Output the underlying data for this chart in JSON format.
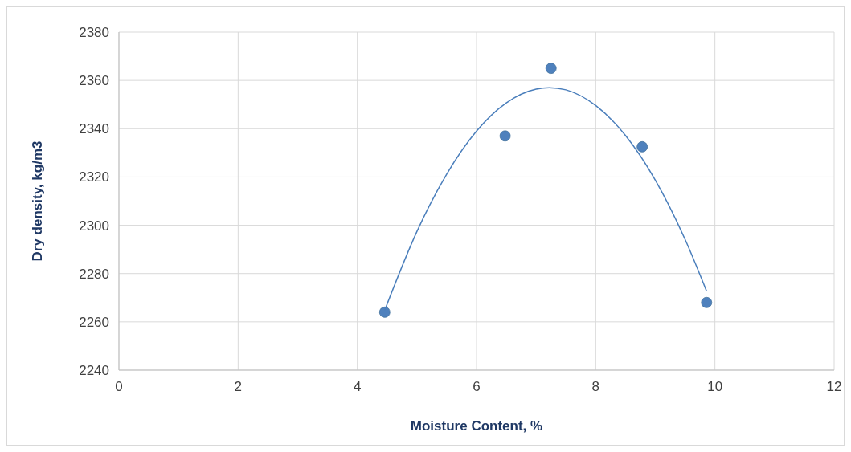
{
  "chart_data": {
    "type": "scatter",
    "xlabel": "Moisture Content, %",
    "ylabel": "Dry density, kg/m3",
    "xlim": [
      0,
      12
    ],
    "xticks": [
      0,
      2,
      4,
      6,
      8,
      10,
      12
    ],
    "ylim": [
      2240,
      2380
    ],
    "yticks": [
      2240,
      2260,
      2280,
      2300,
      2320,
      2340,
      2360,
      2380
    ],
    "grid": true,
    "marker": "circle",
    "series": [
      {
        "color": "#4f81bd",
        "x": [
          4.46,
          6.48,
          7.25,
          8.78,
          9.86
        ],
        "values": [
          2264,
          2337,
          2365,
          2332.5,
          2268
        ]
      },
      {
        "type": "line",
        "marker": "none",
        "color": "#4a7ebb",
        "x": [
          4.46,
          5,
          5.5,
          6,
          6.5,
          7,
          7.22,
          7.5,
          8,
          8.5,
          9,
          9.5,
          9.86
        ],
        "values": [
          2264.8,
          2297.4,
          2321.2,
          2339,
          2350.7,
          2356.4,
          2357,
          2356.1,
          2349.6,
          2337.2,
          2318.7,
          2294.1,
          2272.7
        ]
      }
    ]
  }
}
